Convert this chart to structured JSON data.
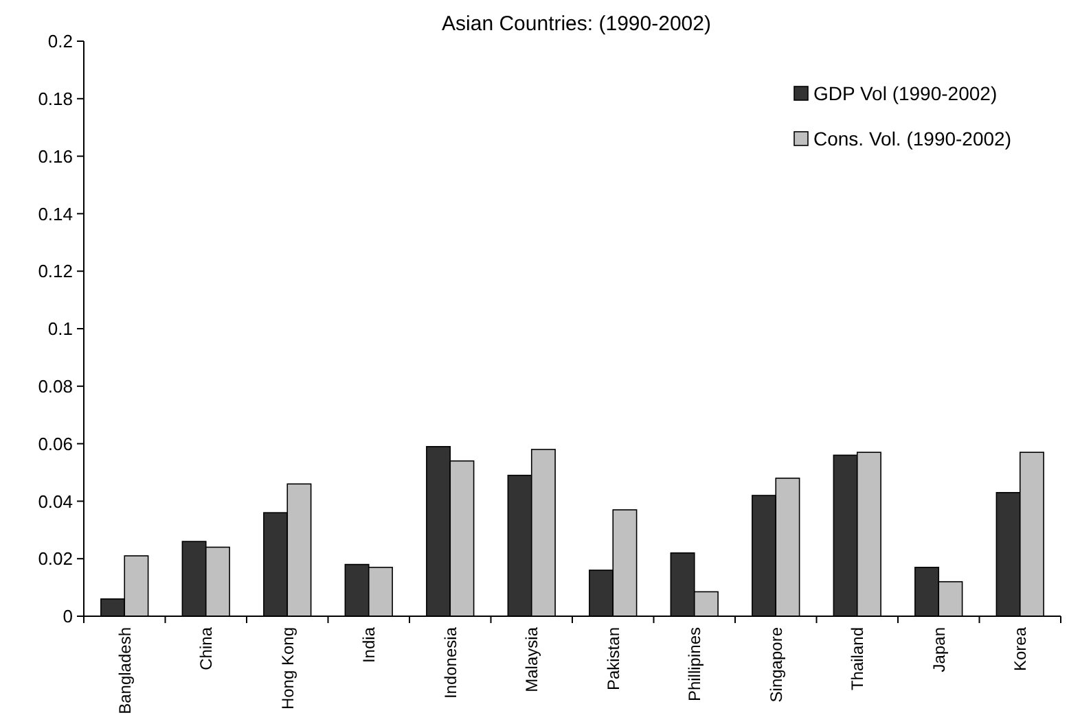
{
  "chart_data": {
    "type": "bar",
    "title": "Asian Countries: (1990-2002)",
    "categories": [
      "Bangladesh",
      "China",
      "Hong Kong",
      "India",
      "Indonesia",
      "Malaysia",
      "Pakistan",
      "Phillipines",
      "Singapore",
      "Thailand",
      "Japan",
      "Korea"
    ],
    "series": [
      {
        "name": "GDP Vol (1990-2002)",
        "color": "#333333",
        "values": [
          0.006,
          0.026,
          0.036,
          0.018,
          0.059,
          0.049,
          0.016,
          0.022,
          0.042,
          0.056,
          0.017,
          0.043
        ]
      },
      {
        "name": "Cons. Vol. (1990-2002)",
        "color": "#c0c0c0",
        "values": [
          0.021,
          0.024,
          0.046,
          0.017,
          0.054,
          0.058,
          0.037,
          0.0085,
          0.048,
          0.057,
          0.012,
          0.057
        ]
      }
    ],
    "ylim": [
      0,
      0.2
    ],
    "yticks": [
      0,
      0.02,
      0.04,
      0.06,
      0.08,
      0.1,
      0.12,
      0.14,
      0.16,
      0.18,
      0.2
    ],
    "grid": false,
    "legend": "top right"
  }
}
